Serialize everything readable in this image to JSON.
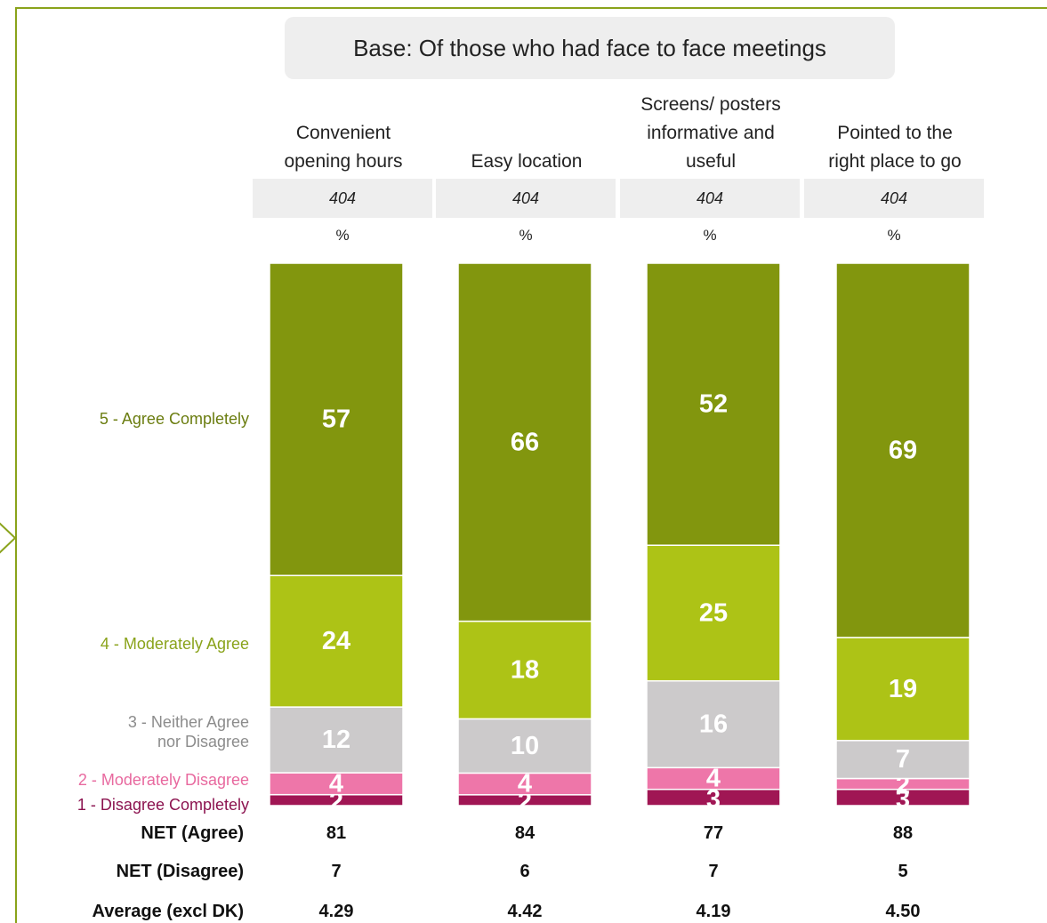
{
  "colors": {
    "frame": "#8aa31b",
    "base_box": "#eeeeee",
    "base_cell": "#eeeeee",
    "agree_completely": "#82960e",
    "moderately_agree": "#adc316",
    "neither": "#cccacb",
    "moderately_disagree": "#ee76a9",
    "disagree_completely": "#a01654"
  },
  "base_note": "Base: Of those who had face to face meetings",
  "columns": [
    {
      "header": "Convenient\nopening hours",
      "base": "404",
      "unit": "%"
    },
    {
      "header": "Easy  location",
      "base": "404",
      "unit": "%"
    },
    {
      "header": "Screens/ posters\ninformative and\nuseful",
      "base": "404",
      "unit": "%"
    },
    {
      "header": "Pointed to the\nright place to go",
      "base": "404",
      "unit": "%"
    }
  ],
  "category_labels": [
    {
      "label": "5 - Agree Completely",
      "color": "#6b7d10"
    },
    {
      "label": "4 - Moderately Agree",
      "color": "#8aa31b"
    },
    {
      "label": "3 - Neither Agree\nnor Disagree",
      "color": "#8c8c8c"
    },
    {
      "label": "2 - Moderately Disagree",
      "color": "#e8699f"
    },
    {
      "label": "1 - Disagree Completely",
      "color": "#8c1450"
    }
  ],
  "chart_data": {
    "type": "bar",
    "stacked": true,
    "categories": [
      "Convenient opening hours",
      "Easy  location",
      "Screens/ posters informative and useful",
      "Pointed to the right place to go"
    ],
    "series": [
      {
        "name": "1 - Disagree Completely",
        "values": [
          2,
          2,
          3,
          3
        ]
      },
      {
        "name": "2 - Moderately Disagree",
        "values": [
          4,
          4,
          4,
          2
        ]
      },
      {
        "name": "3 - Neither Agree nor Disagree",
        "values": [
          12,
          10,
          16,
          7
        ]
      },
      {
        "name": "4 - Moderately Agree",
        "values": [
          24,
          18,
          25,
          19
        ]
      },
      {
        "name": "5 - Agree Completely",
        "values": [
          57,
          66,
          52,
          69
        ]
      }
    ],
    "ylim": [
      0,
      100
    ]
  },
  "summary": [
    {
      "label": "NET (Agree)",
      "values": [
        "81",
        "84",
        "77",
        "88"
      ]
    },
    {
      "label": "NET (Disagree)",
      "values": [
        "7",
        "6",
        "7",
        "5"
      ]
    },
    {
      "label": "Average (excl DK)",
      "values": [
        "4.29",
        "4.42",
        "4.19",
        "4.50"
      ]
    }
  ]
}
